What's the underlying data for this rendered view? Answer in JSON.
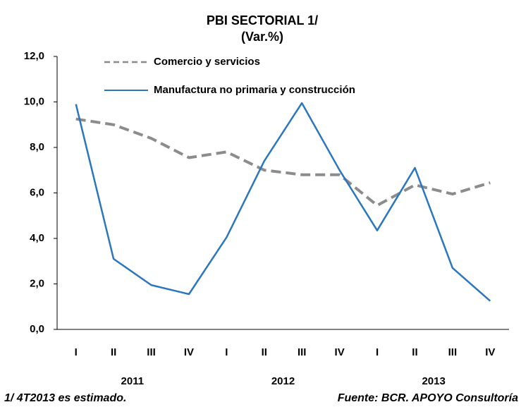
{
  "chart_data": {
    "type": "line",
    "title": "PBI SECTORIAL  1/",
    "subtitle": "(Var.%)",
    "categories": [
      "I",
      "II",
      "III",
      "IV",
      "I",
      "II",
      "III",
      "IV",
      "I",
      "II",
      "III",
      "IV"
    ],
    "category_groups": [
      "2011",
      "2012",
      "2013"
    ],
    "series": [
      {
        "name": "Comercio y servicios",
        "color": "#8c8c8c",
        "dashed": true,
        "values": [
          9.25,
          9.0,
          8.4,
          7.55,
          7.8,
          7.0,
          6.8,
          6.8,
          5.45,
          6.35,
          5.95,
          6.45
        ]
      },
      {
        "name": "Manufactura no primaria y construcción",
        "color": "#2a77c0",
        "dashed": false,
        "values": [
          9.9,
          3.1,
          1.95,
          1.55,
          4.05,
          7.4,
          9.95,
          7.0,
          4.35,
          7.1,
          2.7,
          1.25
        ]
      }
    ],
    "ylim": [
      0,
      12
    ],
    "yticks": [
      {
        "value": 0,
        "label": "0,0"
      },
      {
        "value": 2,
        "label": "2,0"
      },
      {
        "value": 4,
        "label": "4,0"
      },
      {
        "value": 6,
        "label": "6,0"
      },
      {
        "value": 8,
        "label": "8,0"
      },
      {
        "value": 10,
        "label": "10,0"
      },
      {
        "value": 12,
        "label": "12,0"
      }
    ],
    "grid": false,
    "legend": "upper left",
    "footnote": "1/ 4T2013 es estimado.",
    "source": "Fuente: BCR. APOYO Consultoría"
  }
}
